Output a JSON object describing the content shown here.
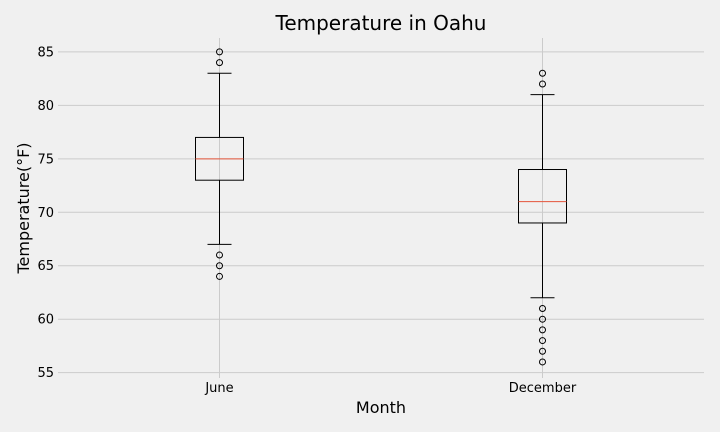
{
  "chart_data": {
    "type": "box",
    "title": "Temperature in Oahu",
    "xlabel": "Month",
    "ylabel": "Temperature(°F)",
    "ylim": [
      54.5,
      86.3
    ],
    "yticks": [
      55,
      60,
      65,
      70,
      75,
      80,
      85
    ],
    "grid": true,
    "colors": {
      "median": "#e5553b",
      "box": "#000000",
      "grid": "#cbcbcb",
      "background": "#f0f0f0"
    },
    "categories": [
      "June",
      "December"
    ],
    "boxes": [
      {
        "label": "June",
        "whisker_low": 67,
        "q1": 73,
        "median": 75,
        "q3": 77,
        "whisker_high": 83,
        "outliers": [
          64,
          65,
          66,
          84,
          85
        ]
      },
      {
        "label": "December",
        "whisker_low": 62,
        "q1": 69,
        "median": 71,
        "q3": 74,
        "whisker_high": 81,
        "outliers": [
          56,
          57,
          58,
          59,
          60,
          61,
          82,
          83
        ]
      }
    ]
  }
}
